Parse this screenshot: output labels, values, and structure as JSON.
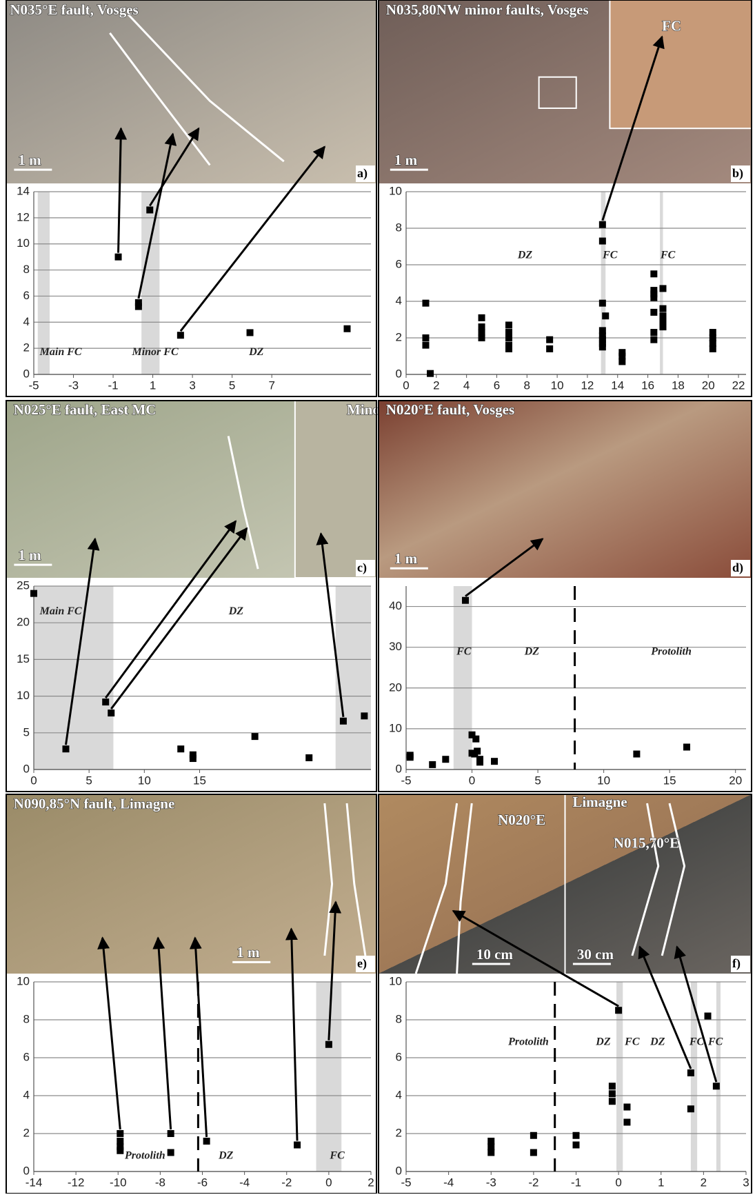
{
  "chart_data": [
    {
      "type": "scatter",
      "title": "N035°E fault, Vosges",
      "letter": "a)",
      "scale_labels": [
        "1 m"
      ],
      "photo_labels": [],
      "zone_labels": [
        "Main FC",
        "Minor FC",
        "DZ"
      ],
      "x": [
        -0.74,
        0.28,
        0.28,
        0.85,
        2.4,
        5.9,
        10.8
      ],
      "y": [
        9,
        5.5,
        5.2,
        12.6,
        3,
        3.2,
        3.5
      ],
      "xlim": [
        -5,
        12
      ],
      "ylim": [
        0,
        14
      ],
      "xticks": [
        -5,
        -3,
        -1,
        1,
        3,
        5,
        7
      ],
      "yticks": [
        0,
        2,
        4,
        6,
        8,
        10,
        12,
        14
      ],
      "bands": [
        [
          -4.8,
          -4.2
        ],
        [
          0.43,
          1.34
        ]
      ],
      "dashed": [],
      "grid": true,
      "color": "#000000",
      "band_color": "#d9d9d9"
    },
    {
      "type": "scatter",
      "title": "N035,80NW minor faults, Vosges",
      "letter": "b)",
      "scale_labels": [
        "1 m"
      ],
      "photo_labels": [
        "FC"
      ],
      "zone_labels": [
        "DZ",
        "FC",
        "FC"
      ],
      "x": [
        1.3,
        1.3,
        1.3,
        1.6,
        5,
        5,
        5,
        5,
        6.8,
        6.8,
        6.8,
        6.8,
        6.8,
        9.5,
        9.5,
        13,
        13,
        13,
        13,
        13,
        13,
        13,
        13,
        13.2,
        14.3,
        14.3,
        14.3,
        16.4,
        16.4,
        16.4,
        16.4,
        16.4,
        16.4,
        16.4,
        17,
        17,
        17,
        17,
        17,
        20.3,
        20.3,
        20.3,
        20.3
      ],
      "y": [
        3.9,
        2.0,
        1.6,
        0.05,
        3.1,
        2.6,
        2.3,
        2.0,
        2.7,
        2.3,
        2.0,
        1.6,
        1.4,
        1.9,
        1.4,
        8.2,
        7.3,
        3.9,
        2.4,
        2.1,
        1.9,
        1.7,
        1.5,
        3.2,
        1.2,
        1.0,
        0.7,
        5.5,
        4.6,
        4.4,
        4.2,
        3.4,
        2.3,
        1.9,
        4.7,
        3.6,
        3.2,
        2.9,
        2.6,
        2.3,
        2.0,
        1.7,
        1.4
      ],
      "xlim": [
        0,
        22.5
      ],
      "ylim": [
        0,
        10
      ],
      "xticks": [
        0,
        2,
        4,
        6,
        8,
        10,
        12,
        14,
        16,
        18,
        20,
        22
      ],
      "yticks": [
        0,
        2,
        4,
        6,
        8,
        10
      ],
      "bands": [
        [
          12.9,
          13.2
        ],
        [
          16.8,
          17.0
        ]
      ],
      "dashed": [],
      "grid": true,
      "color": "#000000",
      "band_color": "#d9d9d9"
    },
    {
      "type": "scatter",
      "title": "N025°E fault, East MC",
      "letter": "c)",
      "scale_labels": [
        "1 m"
      ],
      "photo_labels": [
        "Minor FC"
      ],
      "zone_labels": [
        "Main FC",
        "DZ"
      ],
      "x": [
        0,
        2.9,
        6.5,
        7,
        13.3,
        14.4,
        14.4,
        20,
        24.9,
        28,
        29.9
      ],
      "y": [
        24,
        2.8,
        9.2,
        7.7,
        2.8,
        2.0,
        1.5,
        4.5,
        1.6,
        6.6,
        7.3
      ],
      "xlim": [
        0,
        30.5
      ],
      "ylim": [
        0,
        25
      ],
      "xticks": [
        0,
        5,
        10,
        15
      ],
      "yticks": [
        0,
        5,
        10,
        15,
        20,
        25
      ],
      "bands": [
        [
          0,
          7.2
        ],
        [
          27.3,
          30.5
        ]
      ],
      "dashed": [],
      "grid": true,
      "color": "#000000",
      "band_color": "#d9d9d9"
    },
    {
      "type": "scatter",
      "title": "N020°E fault, Vosges",
      "letter": "d)",
      "scale_labels": [
        "1 m"
      ],
      "photo_labels": [],
      "zone_labels": [
        "FC",
        "DZ",
        "Protolith"
      ],
      "x": [
        -4.7,
        -4.7,
        -3,
        -2,
        -0.5,
        0,
        0.3,
        0,
        0.4,
        0.6,
        0.6,
        0.2,
        1.7,
        12.5,
        16.3
      ],
      "y": [
        3.5,
        3,
        1.2,
        2.5,
        41.5,
        8.5,
        7.5,
        4,
        4.5,
        2.5,
        1.8,
        3.8,
        2,
        3.8,
        5.5
      ],
      "xlim": [
        -5,
        20.8
      ],
      "ylim": [
        0,
        45
      ],
      "xticks": [
        -5,
        0,
        5,
        10,
        15,
        20
      ],
      "yticks": [
        0,
        10,
        20,
        30,
        40
      ],
      "bands": [
        [
          -1.4,
          0
        ]
      ],
      "dashed": [
        7.8
      ],
      "grid": true,
      "color": "#000000",
      "band_color": "#d9d9d9"
    },
    {
      "type": "scatter",
      "title": "N090,85°N fault, Limagne",
      "letter": "e)",
      "scale_labels": [
        "1 m"
      ],
      "photo_labels": [],
      "zone_labels": [
        "Protolith",
        "DZ",
        "FC"
      ],
      "x": [
        -9.9,
        -9.9,
        -9.9,
        -9.9,
        -7.5,
        -7.5,
        -5.8,
        -1.5,
        0
      ],
      "y": [
        2.0,
        1.6,
        1.3,
        1.1,
        2.0,
        1.0,
        1.6,
        1.4,
        6.7
      ],
      "xlim": [
        -14,
        2
      ],
      "ylim": [
        0,
        10
      ],
      "xticks": [
        -14,
        -12,
        -10,
        -8,
        -6,
        -4,
        -2,
        0,
        2
      ],
      "yticks": [
        0,
        2,
        4,
        6,
        8,
        10
      ],
      "bands": [
        [
          -0.6,
          0.6
        ]
      ],
      "dashed": [
        -6.2
      ],
      "grid": true,
      "color": "#000000",
      "band_color": "#d9d9d9"
    },
    {
      "type": "scatter",
      "title": "Limagne",
      "letter": "f)",
      "scale_labels": [
        "10 cm",
        "30 cm"
      ],
      "photo_labels": [
        "N020°E",
        "N015,70°E"
      ],
      "zone_labels": [
        "Protolith",
        "DZ",
        "FC",
        "DZ",
        "FC",
        "FC"
      ],
      "x": [
        -3,
        -3,
        -3,
        -2,
        -2,
        -1,
        -1,
        0,
        -0.15,
        -0.15,
        -0.15,
        0.2,
        0.2,
        1.7,
        1.7,
        2.1,
        2.3
      ],
      "y": [
        1.6,
        1.3,
        1.0,
        1.9,
        1.0,
        1.9,
        1.4,
        8.5,
        4.5,
        4.1,
        3.7,
        3.4,
        2.6,
        5.2,
        3.3,
        8.2,
        4.5
      ],
      "xlim": [
        -5,
        3
      ],
      "ylim": [
        0,
        10
      ],
      "xticks": [
        -5,
        -4,
        -3,
        -2,
        -1,
        0,
        1,
        2,
        3
      ],
      "yticks": [
        0,
        2,
        4,
        6,
        8,
        10
      ],
      "bands": [
        [
          -0.05,
          0.1
        ],
        [
          1.7,
          1.85
        ],
        [
          2.3,
          2.4
        ]
      ],
      "dashed": [
        -1.5
      ],
      "grid": true,
      "color": "#000000",
      "band_color": "#d9d9d9"
    }
  ]
}
